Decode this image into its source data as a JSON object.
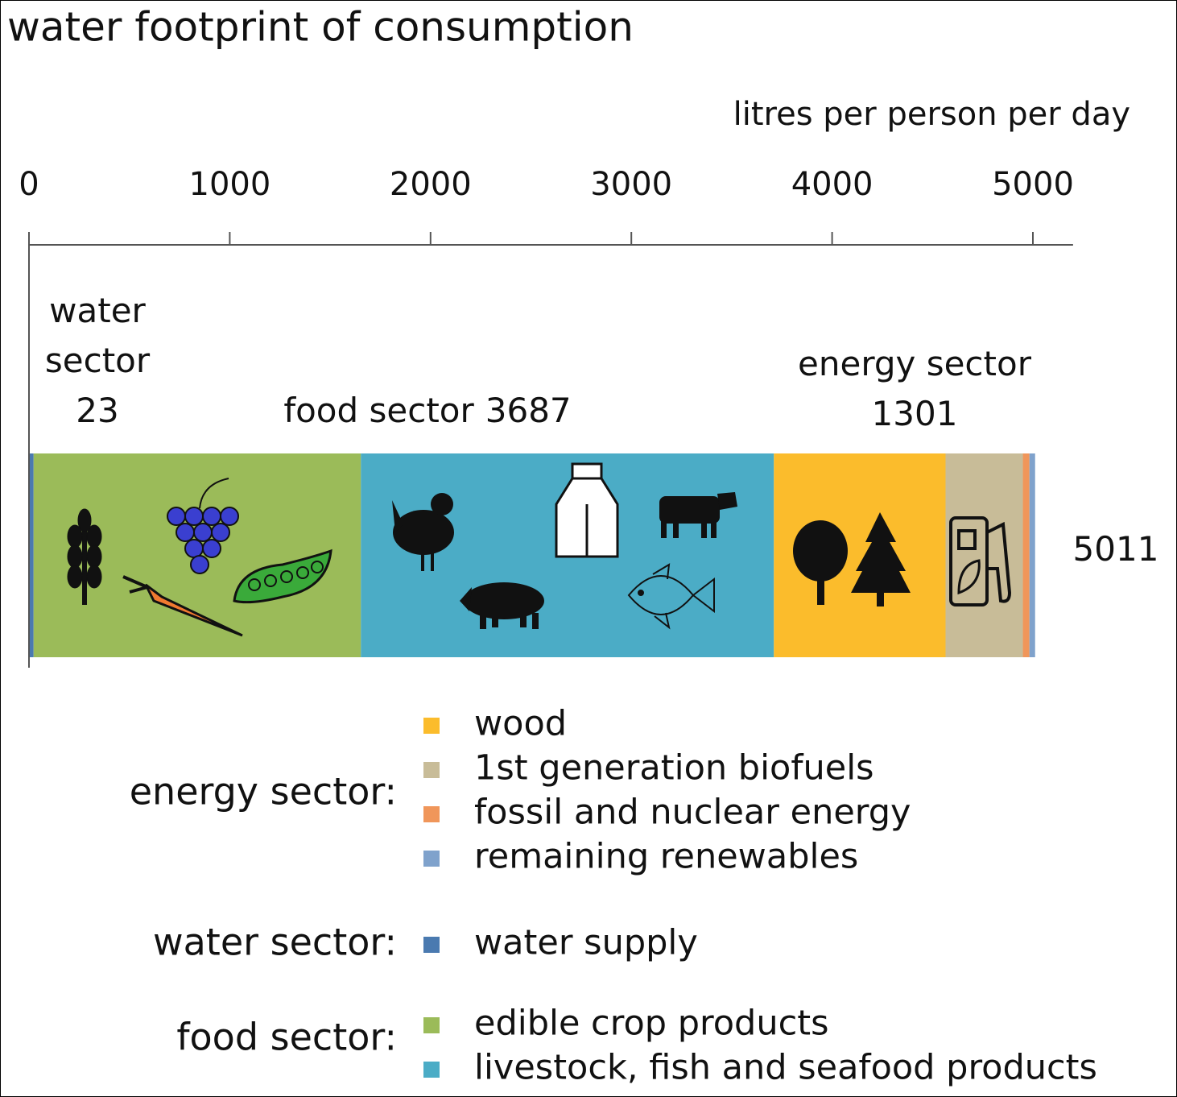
{
  "chart_data": {
    "type": "stacked-bar",
    "title": "water footprint of consumption",
    "x_label": "litres per person per day",
    "xlim": [
      0,
      5200
    ],
    "xticks": [
      0,
      1000,
      2000,
      3000,
      4000,
      5000
    ],
    "total": 5011,
    "sectors": [
      {
        "label": "water sector",
        "legend_label": "water sector:",
        "total": 23,
        "series": [
          {
            "name": "water supply",
            "color": "#4a7ab0",
            "values": [
              23
            ]
          }
        ]
      },
      {
        "label": "food sector",
        "legend_label": "food sector:",
        "total": 3687,
        "series": [
          {
            "name": "edible crop products",
            "color": "#9bbb59",
            "values": [
              1630
            ]
          },
          {
            "name": "livestock, fish and seafood products",
            "color": "#4bacc6",
            "values": [
              2057
            ]
          }
        ]
      },
      {
        "label": "energy sector",
        "legend_label": "energy sector:",
        "total": 1301,
        "series": [
          {
            "name": "wood",
            "color": "#fbbc2c",
            "values": [
              855
            ]
          },
          {
            "name": "1st generation biofuels",
            "color": "#c8bc98",
            "values": [
              385
            ]
          },
          {
            "name": "fossil and nuclear energy",
            "color": "#f0965a",
            "values": [
              33
            ]
          },
          {
            "name": "remaining renewables",
            "color": "#7fa2cc",
            "values": [
              28
            ]
          }
        ]
      }
    ]
  }
}
